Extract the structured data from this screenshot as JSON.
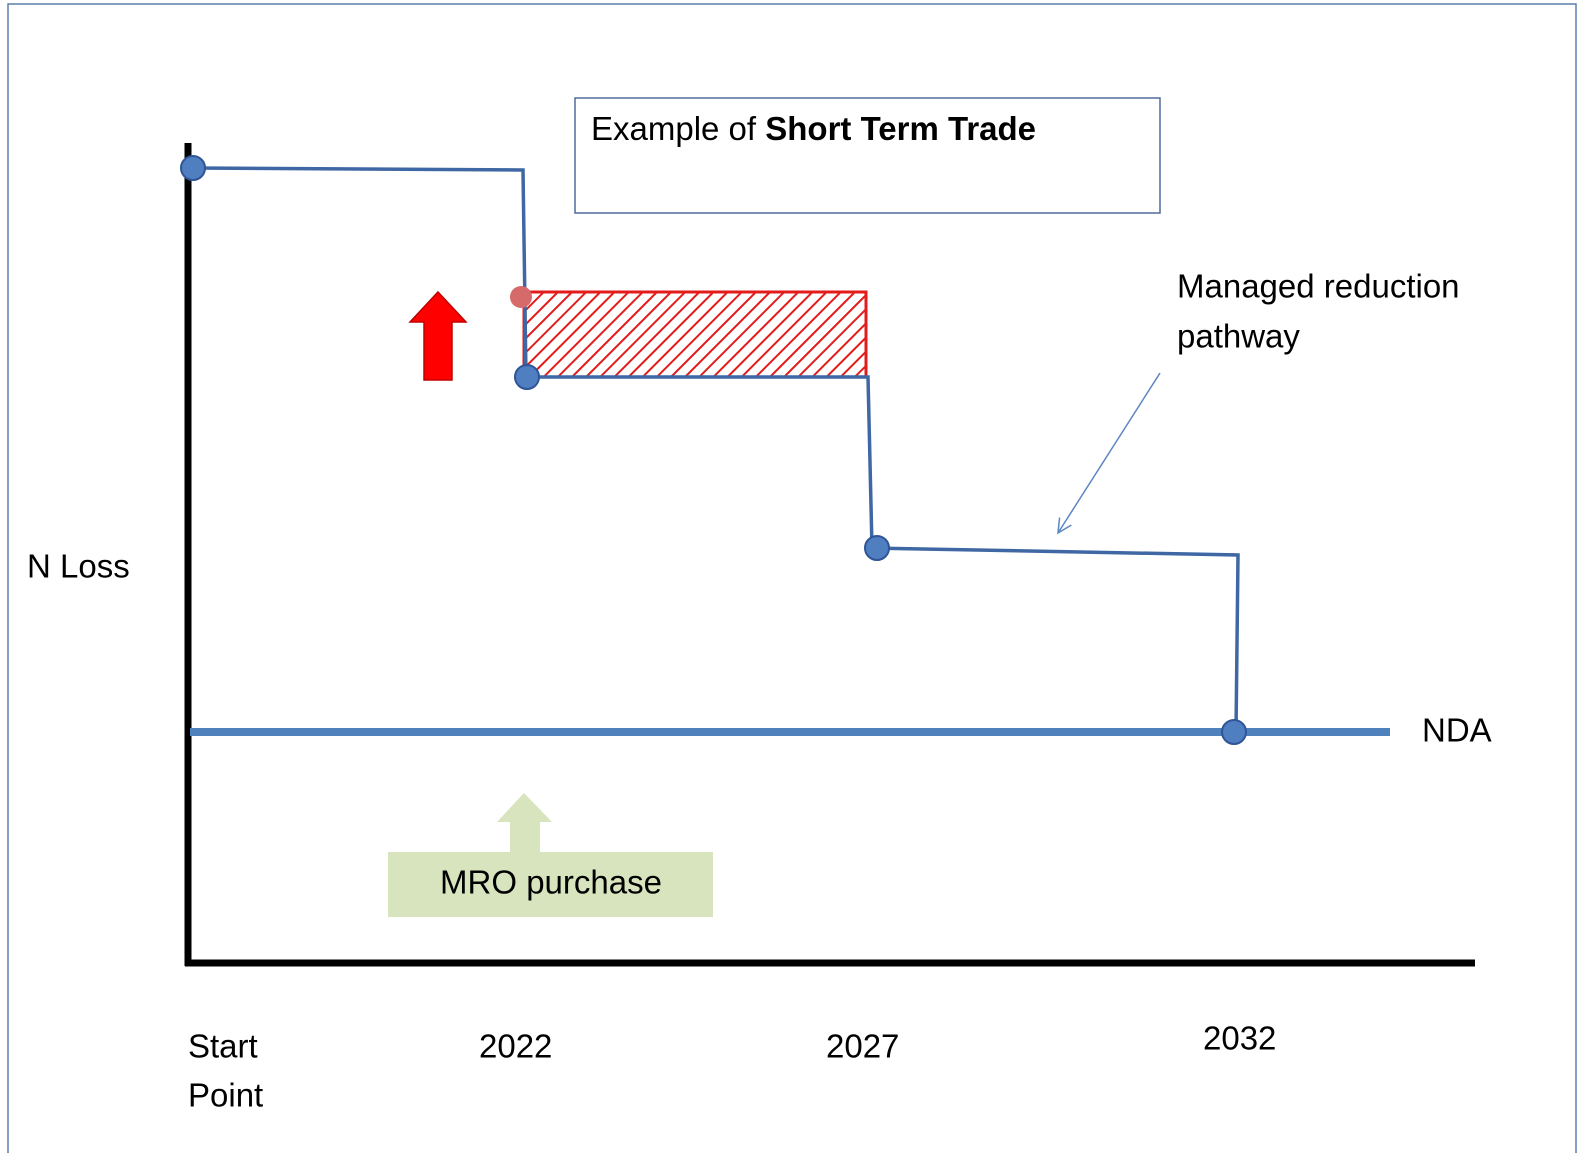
{
  "callout": {
    "prefix": "Example of ",
    "bold": "Short Term Trade"
  },
  "y_axis_label": "N Loss",
  "pathway_label": [
    "Managed reduction",
    "pathway"
  ],
  "baseline_label": "NDA",
  "purchase_label": "MRO purchase",
  "start_label": [
    "Start",
    "Point"
  ],
  "years": [
    "2022",
    "2027",
    "2032"
  ]
}
